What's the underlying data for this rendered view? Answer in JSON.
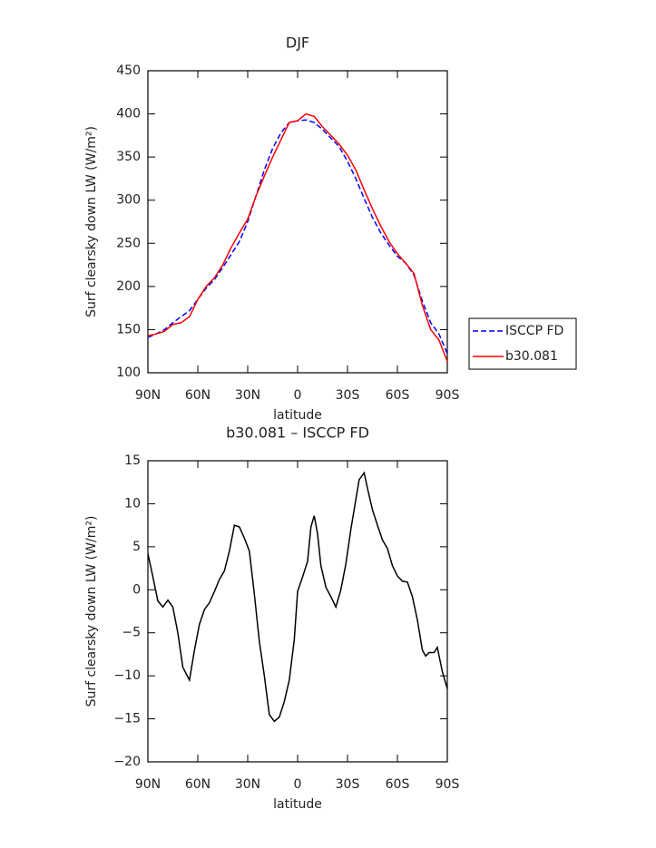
{
  "chart_data": [
    {
      "type": "line",
      "title": "DJF",
      "xlabel": "latitude",
      "ylabel": "Surf clearsky down LW (W/m²)",
      "xlim": [
        90,
        -90
      ],
      "xticks": [
        {
          "value": 90,
          "label": "90N"
        },
        {
          "value": 60,
          "label": "60N"
        },
        {
          "value": 30,
          "label": "30N"
        },
        0,
        {
          "value": -30,
          "label": "30S"
        },
        {
          "value": -60,
          "label": "60S"
        },
        {
          "value": -90,
          "label": "90S"
        }
      ],
      "ylim": [
        100,
        450
      ],
      "yticks": [
        100,
        150,
        200,
        250,
        300,
        350,
        400,
        450
      ],
      "legend": "right",
      "x": [
        90,
        85,
        80,
        75,
        70,
        65,
        60,
        55,
        50,
        45,
        40,
        35,
        30,
        25,
        20,
        15,
        10,
        5,
        0,
        -5,
        -10,
        -15,
        -20,
        -25,
        -30,
        -35,
        -40,
        -45,
        -50,
        -55,
        -60,
        -65,
        -70,
        -75,
        -80,
        -85,
        -90
      ],
      "series": [
        {
          "name": "ISCCP FD",
          "color": "#0000ff",
          "dashed": true,
          "values": [
            141,
            145,
            150,
            158,
            165,
            172,
            185,
            198,
            208,
            222,
            237,
            252,
            275,
            305,
            335,
            360,
            378,
            390,
            392,
            393,
            390,
            382,
            372,
            362,
            345,
            325,
            302,
            280,
            262,
            248,
            235,
            227,
            213,
            183,
            158,
            145,
            122
          ]
        },
        {
          "name": "b30.081",
          "color": "#ff0000",
          "dashed": false,
          "values": [
            143,
            145,
            148,
            156,
            158,
            165,
            185,
            200,
            210,
            225,
            245,
            262,
            278,
            305,
            328,
            350,
            370,
            390,
            392,
            400,
            397,
            385,
            375,
            365,
            352,
            335,
            312,
            290,
            270,
            252,
            238,
            227,
            215,
            178,
            150,
            138,
            113
          ]
        }
      ]
    },
    {
      "type": "line",
      "title": "b30.081 – ISCCP FD",
      "xlabel": "latitude",
      "ylabel": "Surf clearsky down LW (W/m²)",
      "xlim": [
        90,
        -90
      ],
      "xticks": [
        {
          "value": 90,
          "label": "90N"
        },
        {
          "value": 60,
          "label": "60N"
        },
        {
          "value": 30,
          "label": "30N"
        },
        0,
        {
          "value": -30,
          "label": "30S"
        },
        {
          "value": -60,
          "label": "60S"
        },
        {
          "value": -90,
          "label": "90S"
        }
      ],
      "ylim": [
        -20,
        15
      ],
      "yticks": [
        {
          "value": -20,
          "label": "−20"
        },
        {
          "value": -15,
          "label": "−15"
        },
        {
          "value": -10,
          "label": "−10"
        },
        {
          "value": -5,
          "label": "−5"
        },
        0,
        5,
        10,
        15
      ],
      "x": [
        90,
        87,
        84,
        81,
        78,
        75,
        72,
        69,
        65,
        62,
        59,
        56,
        53,
        50,
        47,
        44,
        41,
        38,
        35,
        32,
        29,
        26,
        23,
        20,
        17,
        14,
        11,
        8,
        5,
        2,
        0,
        -3,
        -6,
        -8,
        -10,
        -12,
        -14,
        -17,
        -20,
        -23,
        -26,
        -29,
        -32,
        -35,
        -37,
        -40,
        -42,
        -45,
        -48,
        -51,
        -54,
        -57,
        -60,
        -63,
        -66,
        -69,
        -72,
        -75,
        -77,
        -79,
        -82,
        -84,
        -87,
        -90
      ],
      "series": [
        {
          "color": "#000000",
          "dashed": false,
          "values": [
            4.2,
            1.5,
            -1.3,
            -2,
            -1.2,
            -2,
            -5,
            -9,
            -10.5,
            -7,
            -4,
            -2.3,
            -1.5,
            -0.2,
            1.2,
            2.2,
            4.5,
            7.5,
            7.3,
            6,
            4.5,
            -0.5,
            -6,
            -10,
            -14.5,
            -15.3,
            -14.8,
            -13,
            -10.5,
            -5.8,
            -0.2,
            1.5,
            3.3,
            7.3,
            8.6,
            6.5,
            2.8,
            0.3,
            -0.8,
            -2,
            0,
            3,
            7,
            10.5,
            12.8,
            13.6,
            11.8,
            9.3,
            7.5,
            5.8,
            4.8,
            2.8,
            1.6,
            1,
            0.9,
            -0.8,
            -3.5,
            -7,
            -7.7,
            -7.3,
            -7.3,
            -6.7,
            -9.5,
            -11.5
          ]
        }
      ]
    }
  ]
}
